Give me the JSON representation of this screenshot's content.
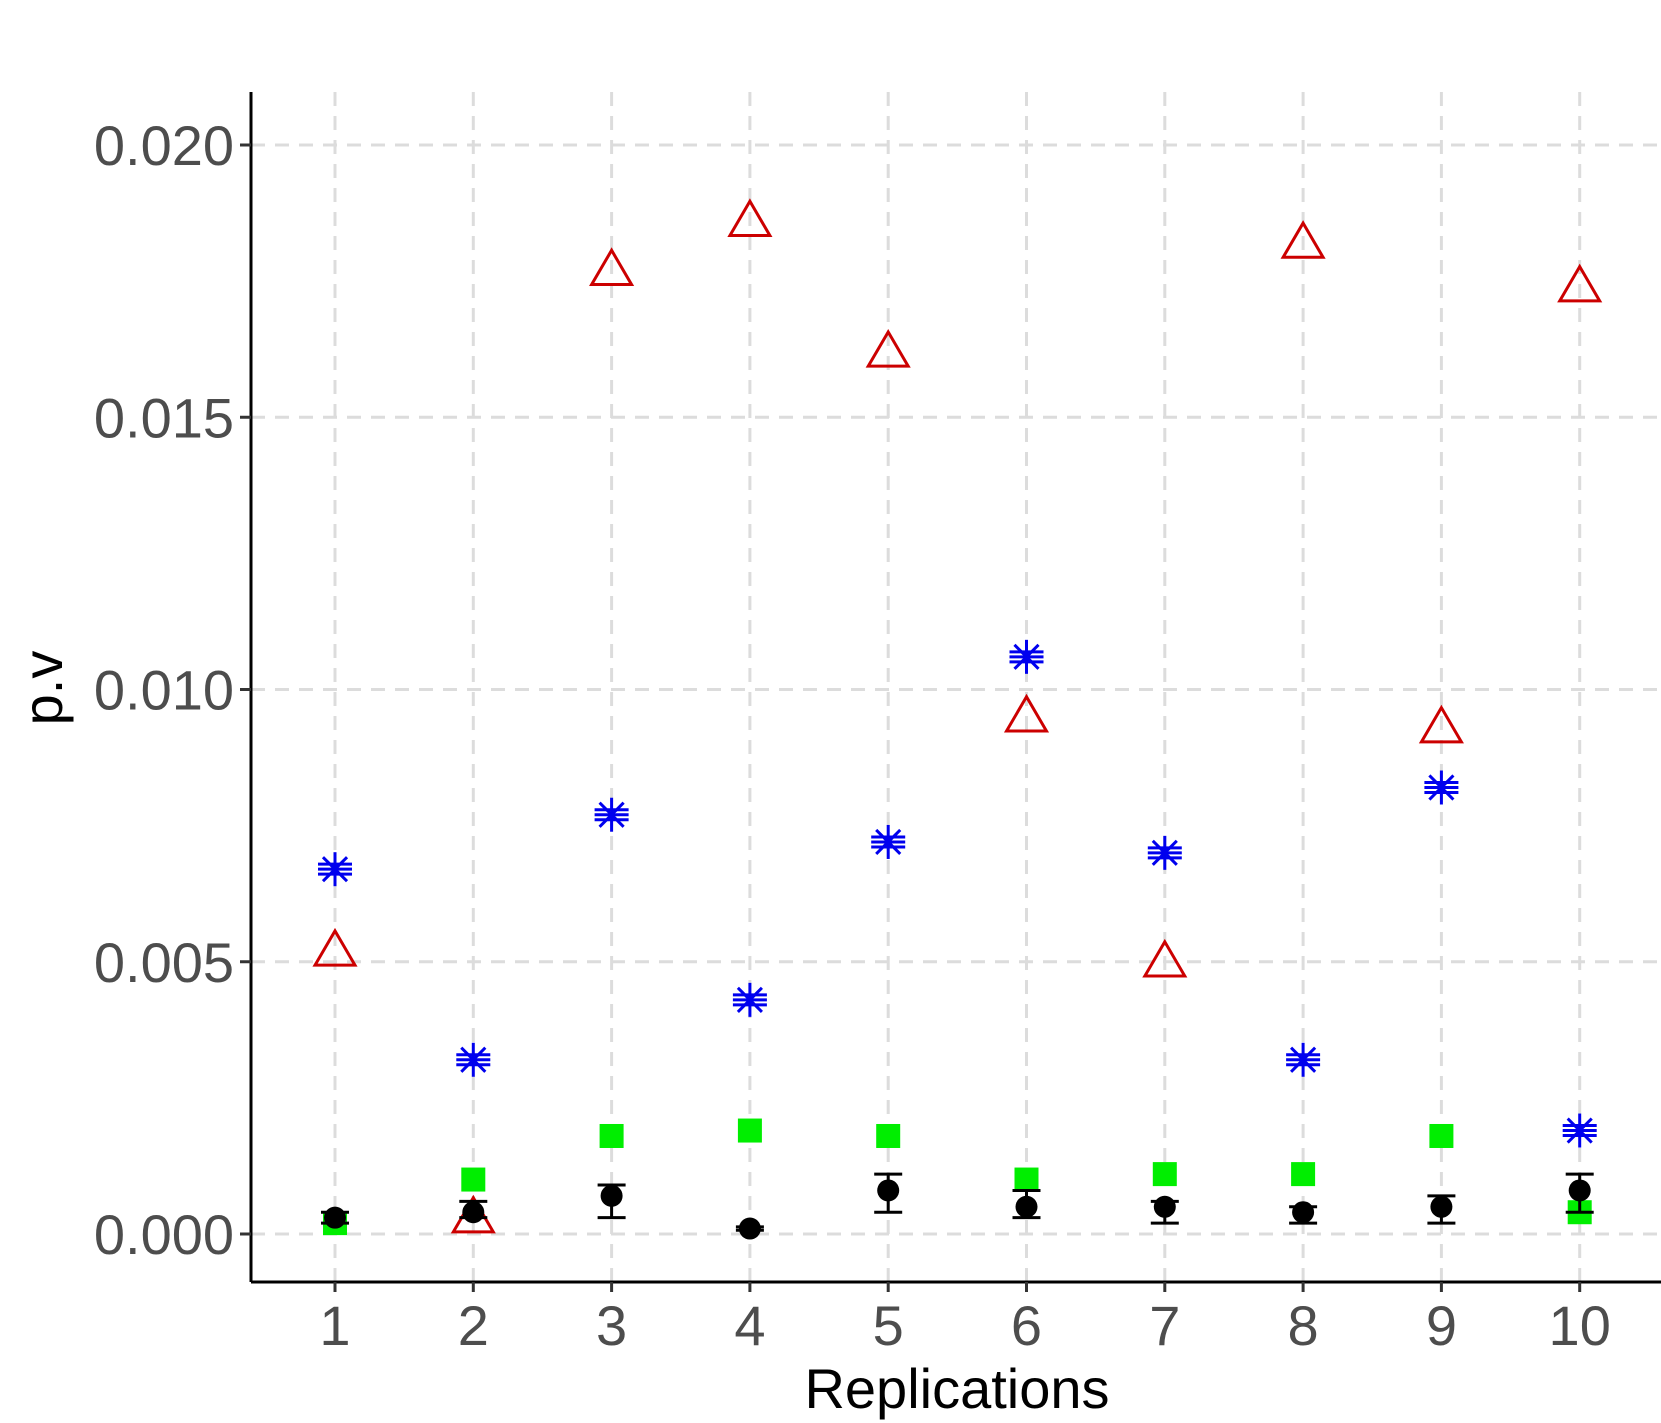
{
  "chart_data": {
    "type": "scatter",
    "xlabel": "Replications",
    "ylabel": "p.v",
    "x": [
      1,
      2,
      3,
      4,
      5,
      6,
      7,
      8,
      9,
      10
    ],
    "x_ticks": [
      "1",
      "2",
      "3",
      "4",
      "5",
      "6",
      "7",
      "8",
      "9",
      "10"
    ],
    "y_ticks": [
      "0.000",
      "0.005",
      "0.010",
      "0.015",
      "0.020"
    ],
    "ylim": [
      -0.00088,
      0.02097
    ],
    "xlim": [
      0.4,
      10.6
    ],
    "grid": true,
    "legend": "none",
    "series": [
      {
        "marker": "triangle-open",
        "color": "#cc0000",
        "values": [
          0.0052,
          0.0003,
          0.0177,
          0.0186,
          0.0162,
          0.0095,
          0.005,
          0.0182,
          0.0093,
          0.0174
        ]
      },
      {
        "marker": "asterisk",
        "color": "#0000ee",
        "values": [
          0.0067,
          0.0032,
          0.0077,
          0.0043,
          0.0072,
          0.0106,
          0.007,
          0.0032,
          0.0082,
          0.0019
        ]
      },
      {
        "marker": "square",
        "color": "#00ee00",
        "values": [
          0.0002,
          0.001,
          0.0018,
          0.0019,
          0.0018,
          0.001,
          0.0011,
          0.0011,
          0.0018,
          0.0004
        ]
      },
      {
        "marker": "circle-errorbar",
        "color": "#000000",
        "values": [
          0.0003,
          0.0004,
          0.0007,
          0.0001,
          0.0008,
          0.0005,
          0.0005,
          0.0004,
          0.0005,
          0.0008
        ],
        "error_low": [
          0.0002,
          0.0003,
          0.0003,
          7e-05,
          0.0004,
          0.0003,
          0.0002,
          0.0002,
          0.0002,
          0.0004
        ],
        "error_high": [
          0.0004,
          0.0006,
          0.0009,
          0.00013,
          0.0011,
          0.0008,
          0.0006,
          0.0005,
          0.0007,
          0.0011
        ]
      }
    ]
  }
}
